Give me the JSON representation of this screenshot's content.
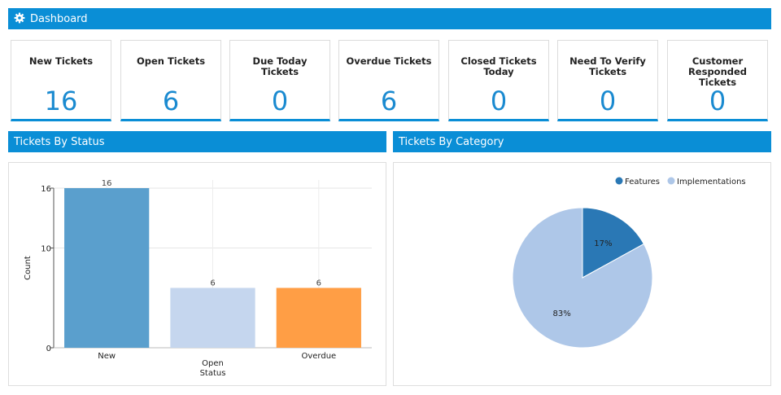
{
  "dashboard": {
    "title": "Dashboard",
    "icon": "gear-icon"
  },
  "cards": [
    {
      "title": "New Tickets",
      "value": "16"
    },
    {
      "title": "Open Tickets",
      "value": "6"
    },
    {
      "title": "Due Today Tickets",
      "value": "0"
    },
    {
      "title": "Overdue Tickets",
      "value": "6"
    },
    {
      "title": "Closed Tickets Today",
      "value": "0"
    },
    {
      "title": "Need To Verify Tickets",
      "value": "0"
    },
    {
      "title": "Customer Responded Tickets",
      "value": "0"
    }
  ],
  "status_panel": {
    "title": "Tickets By Status"
  },
  "category_panel": {
    "title": "Tickets By Category"
  },
  "colors": {
    "accent": "#0a8ed6",
    "bar_new": "#5a9fcd",
    "bar_open": "#c5d6ee",
    "bar_overdue": "#ff9e45",
    "pie_features": "#2a78b5",
    "pie_implementations": "#aec7e8"
  },
  "chart_data": [
    {
      "type": "bar",
      "categories": [
        "New",
        "Open",
        "Overdue"
      ],
      "values": [
        16,
        6,
        6
      ],
      "data_labels": [
        "16",
        "6",
        "6"
      ],
      "xlabel": "Status",
      "ylabel": "Count",
      "yticks": [
        "0",
        "10",
        "16"
      ],
      "ylim": [
        0,
        16
      ],
      "grid": true
    },
    {
      "type": "pie",
      "labels": [
        "Features",
        "Implementations"
      ],
      "values": [
        17,
        83
      ],
      "data_labels": [
        "17%",
        "83%"
      ],
      "legend": "top-right"
    }
  ]
}
